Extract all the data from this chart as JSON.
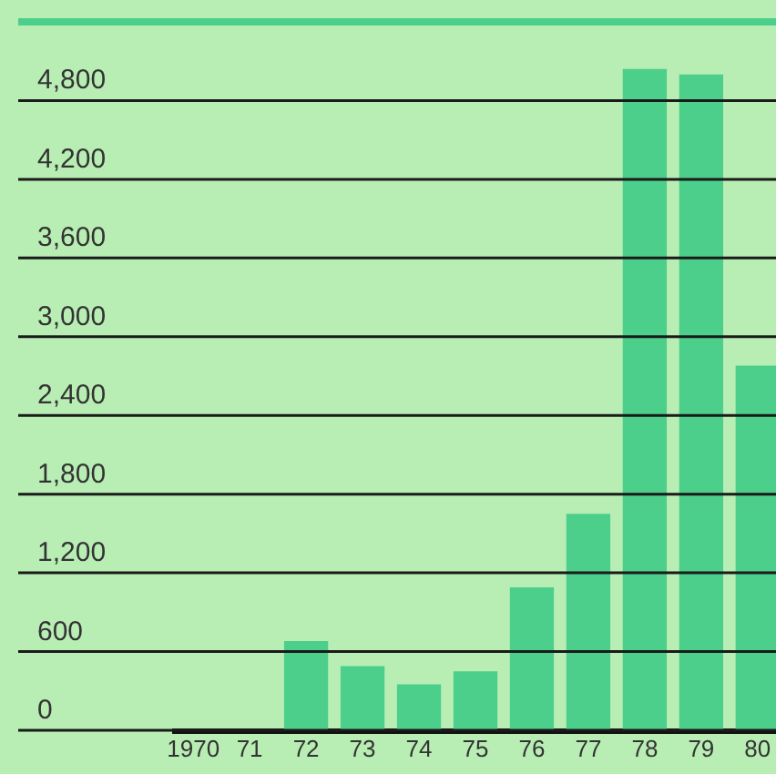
{
  "chart_data": {
    "type": "bar",
    "categories": [
      "1970",
      "71",
      "72",
      "73",
      "74",
      "75",
      "76",
      "77",
      "78",
      "79",
      "80"
    ],
    "values": [
      null,
      null,
      680,
      490,
      350,
      450,
      1090,
      1650,
      5040,
      5000,
      2780
    ],
    "color": "#4ccf8a",
    "ylim": [
      0,
      5400
    ],
    "yticks": [
      0,
      {
        "value": 600,
        "label": "600"
      },
      {
        "value": 1200,
        "label": "1,200"
      },
      {
        "value": 1800,
        "label": "1,800"
      },
      {
        "value": 2400,
        "label": "2,400"
      },
      {
        "value": 3000,
        "label": "3,000"
      },
      {
        "value": 3600,
        "label": "3,600"
      },
      {
        "value": 4200,
        "label": "4,200"
      },
      {
        "value": 4800,
        "label": "4,800"
      }
    ],
    "grid": "y"
  }
}
